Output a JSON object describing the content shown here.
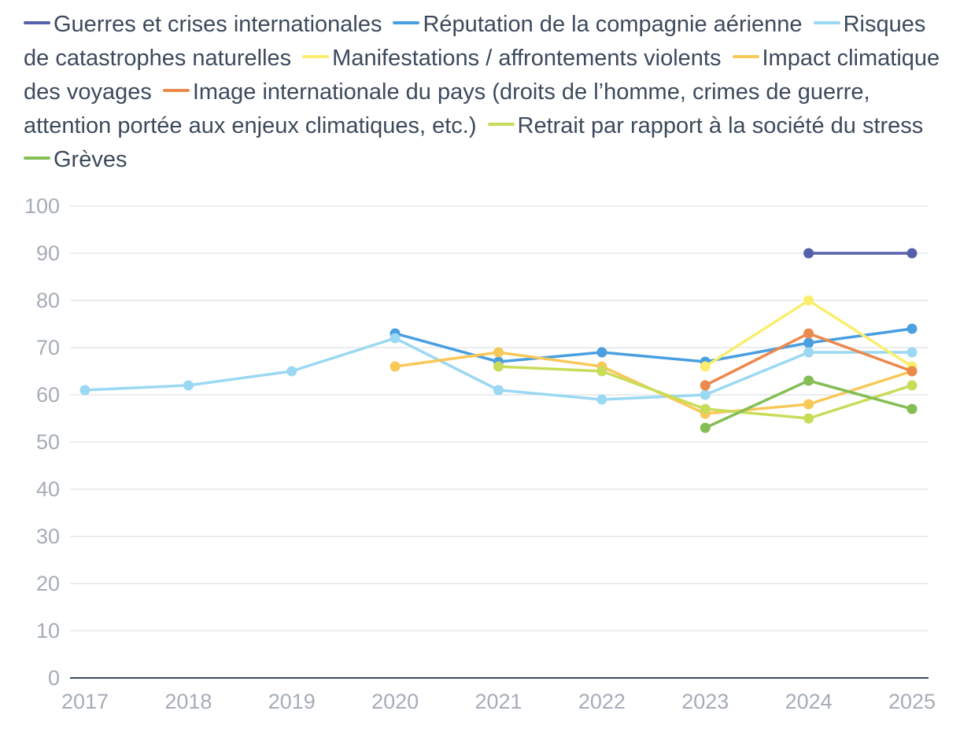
{
  "chart_data": {
    "type": "line",
    "x": [
      "2017",
      "2018",
      "2019",
      "2020",
      "2021",
      "2022",
      "2023",
      "2024",
      "2025"
    ],
    "ylim": [
      0,
      100
    ],
    "yticks": [
      0,
      10,
      20,
      30,
      40,
      50,
      60,
      70,
      80,
      90,
      100
    ],
    "grid": true,
    "legend_position": "top",
    "series": [
      {
        "name": "Guerres et crises internationales",
        "color": "#5560ac",
        "values": [
          null,
          null,
          null,
          null,
          null,
          null,
          null,
          90,
          90
        ]
      },
      {
        "name": "Réputation de la compagnie aérienne",
        "color": "#4a9fe0",
        "values": [
          null,
          null,
          null,
          73,
          67,
          69,
          67,
          71,
          74
        ]
      },
      {
        "name": "Risques de catastrophes naturelles",
        "color": "#9bd8f3",
        "values": [
          61,
          62,
          65,
          72,
          61,
          59,
          60,
          69,
          69
        ]
      },
      {
        "name": "Manifestations / affrontements violents",
        "color": "#f9ee6e",
        "values": [
          null,
          null,
          null,
          null,
          null,
          null,
          66,
          80,
          66
        ]
      },
      {
        "name": "Impact climatique des voyages",
        "color": "#f8c859",
        "values": [
          null,
          null,
          null,
          66,
          69,
          66,
          56,
          58,
          65
        ]
      },
      {
        "name": "Image internationale du pays (droits de l’homme, crimes de guerre, attention portée aux enjeux climatiques, etc.)",
        "color": "#eb8a4d",
        "values": [
          null,
          null,
          null,
          null,
          null,
          null,
          62,
          73,
          65
        ]
      },
      {
        "name": "Retrait par rapport à la société du stress",
        "color": "#c9dc5a",
        "values": [
          null,
          null,
          null,
          null,
          66,
          65,
          57,
          55,
          62
        ]
      },
      {
        "name": "Grèves",
        "color": "#84be55",
        "values": [
          null,
          null,
          null,
          null,
          null,
          null,
          53,
          63,
          57
        ]
      }
    ]
  }
}
